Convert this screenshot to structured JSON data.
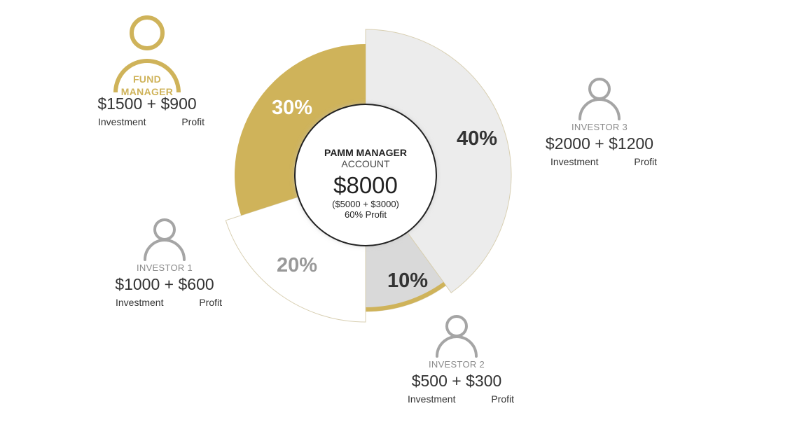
{
  "center": {
    "title": "PAMM MANAGER",
    "subtitle": "ACCOUNT",
    "total": "$8000",
    "breakdown": "($5000 + $3000)",
    "profit_note": "60% Profit"
  },
  "segments": [
    {
      "label": "40%",
      "value": 40,
      "fill": "#ececec",
      "text_color": "#333333"
    },
    {
      "label": "10%",
      "value": 10,
      "fill": "#d9d9d9",
      "text_color": "#333333"
    },
    {
      "label": "20%",
      "value": 20,
      "fill": "#ffffff",
      "text_color": "#999999"
    },
    {
      "label": "30%",
      "value": 30,
      "fill": "#cfb35a",
      "text_color": "#ffffff"
    }
  ],
  "colors": {
    "gold": "#cfb35a",
    "grey_icon": "#a5a5a5",
    "segment_border": "#d8cfb2"
  },
  "parties": [
    {
      "role_line1": "FUND",
      "role_line2": "MANAGER",
      "investment": "$1500",
      "profit": "$900",
      "investment_label": "Investment",
      "profit_label": "Profit",
      "icon": "person-icon"
    },
    {
      "role": "INVESTOR 3",
      "investment": "$2000",
      "profit": "$1200",
      "investment_label": "Investment",
      "profit_label": "Profit",
      "icon": "person-icon"
    },
    {
      "role": "INVESTOR 1",
      "investment": "$1000",
      "profit": "$600",
      "investment_label": "Investment",
      "profit_label": "Profit",
      "icon": "person-icon"
    },
    {
      "role": "INVESTOR 2",
      "investment": "$500",
      "profit": "$300",
      "investment_label": "Investment",
      "profit_label": "Profit",
      "icon": "person-icon"
    }
  ],
  "plus": "+"
}
